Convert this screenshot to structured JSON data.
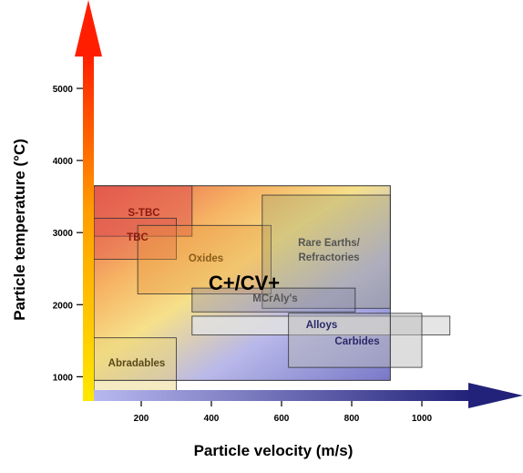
{
  "chart_data": {
    "type": "region-map",
    "title": "",
    "xlabel": "Particle velocity (m/s)",
    "ylabel": "Particle temperature (°C)",
    "x_ticks": [
      200,
      400,
      600,
      800,
      1000
    ],
    "y_ticks": [
      1000,
      2000,
      3000,
      4000,
      5000
    ],
    "center_label": "C+/CV+",
    "process_window": {
      "x": [
        65,
        910
      ],
      "y": [
        950,
        3650
      ]
    },
    "regions": [
      {
        "label": "S-TBC",
        "x": [
          65,
          345
        ],
        "y": [
          2950,
          3650
        ],
        "fill": "#e05a50",
        "fill_opacity": 0.55,
        "text_color": "#8b1a10"
      },
      {
        "label": "TBC",
        "x": [
          65,
          300
        ],
        "y": [
          2630,
          3200
        ],
        "fill": "#e05a50",
        "fill_opacity": 0.35,
        "text_color": "#8b1a10"
      },
      {
        "label": "Oxides",
        "x": [
          190,
          570
        ],
        "y": [
          2150,
          3100
        ],
        "fill": "#e8943c",
        "fill_opacity": 0.35,
        "text_color": "#8a5c1a"
      },
      {
        "label": "Rare Earths/\nRefractories",
        "x": [
          545,
          910
        ],
        "y": [
          1950,
          3520
        ],
        "fill": "#9a9a6a",
        "fill_opacity": 0.35,
        "text_color": "#555555"
      },
      {
        "label": "MCrAly's",
        "x": [
          345,
          810
        ],
        "y": [
          1900,
          2230
        ],
        "fill": "#8888aa",
        "fill_opacity": 0.35,
        "text_color": "#555555"
      },
      {
        "label": "Alloys",
        "x": [
          345,
          1080
        ],
        "y": [
          1580,
          1840
        ],
        "fill": "#e0e0e0",
        "fill_opacity": 0.85,
        "text_color": "#2a2a6a"
      },
      {
        "label": "Carbides",
        "x": [
          620,
          1000
        ],
        "y": [
          1130,
          1880
        ],
        "fill": "#bbbbbb",
        "fill_opacity": 0.5,
        "text_color": "#2a2a6a"
      },
      {
        "label": "Abradables",
        "x": [
          65,
          300
        ],
        "y": [
          800,
          1540
        ],
        "fill": "#e8d27a",
        "fill_opacity": 0.45,
        "text_color": "#5a4a1a"
      }
    ]
  }
}
